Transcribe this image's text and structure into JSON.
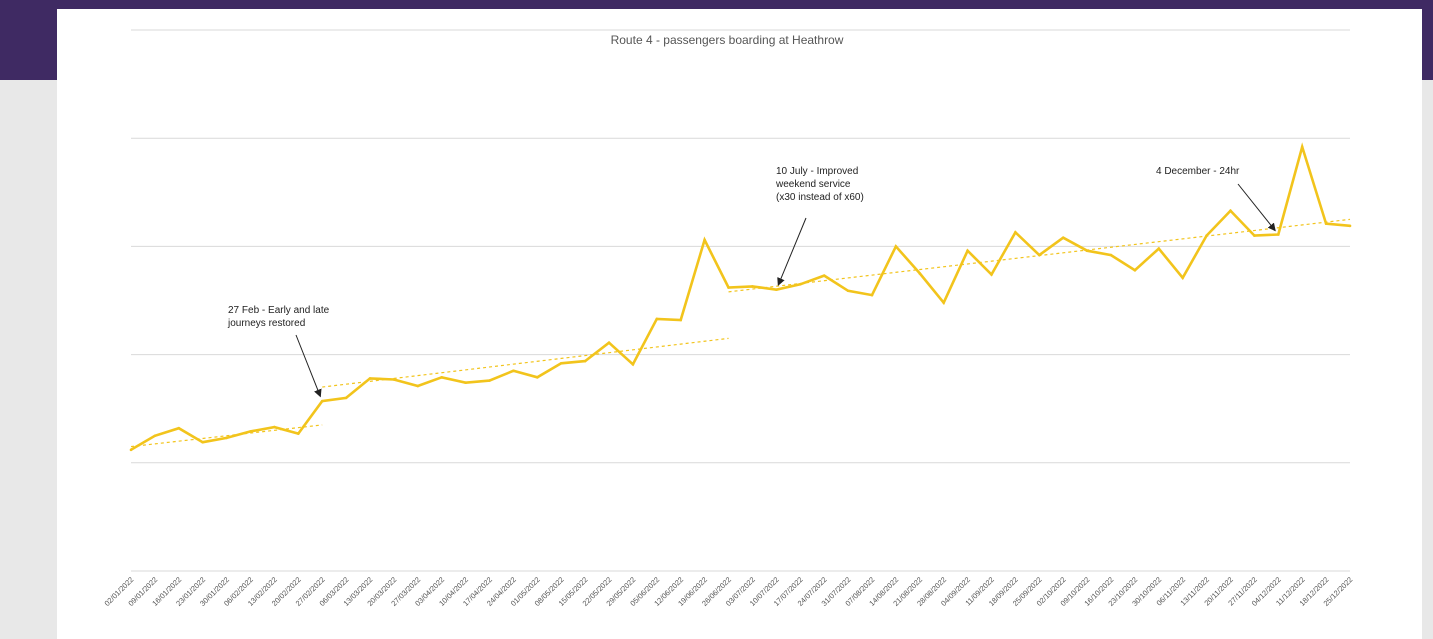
{
  "chart_data": {
    "type": "line",
    "title": "Route 4 - passengers boarding at Heathrow",
    "xlabel": "",
    "ylabel": "",
    "ylim": [
      0,
      5
    ],
    "grid": true,
    "y_ticks_labeled": false,
    "colors": {
      "series": "#f2c41c",
      "trend": "#f2c41c",
      "grid": "#d9d9d9",
      "arrow": "#222222"
    },
    "categories": [
      "02/01/2022",
      "09/01/2022",
      "16/01/2022",
      "23/01/2022",
      "30/01/2022",
      "06/02/2022",
      "13/02/2022",
      "20/02/2022",
      "27/02/2022",
      "06/03/2022",
      "13/03/2022",
      "20/03/2022",
      "27/03/2022",
      "03/04/2022",
      "10/04/2022",
      "17/04/2022",
      "24/04/2022",
      "01/05/2022",
      "08/05/2022",
      "15/05/2022",
      "22/05/2022",
      "29/05/2022",
      "05/06/2022",
      "12/06/2022",
      "19/06/2022",
      "26/06/2022",
      "03/07/2022",
      "10/07/2022",
      "17/07/2022",
      "24/07/2022",
      "31/07/2022",
      "07/08/2022",
      "14/08/2022",
      "21/08/2022",
      "28/08/2022",
      "04/09/2022",
      "11/09/2022",
      "18/09/2022",
      "25/09/2022",
      "02/10/2022",
      "09/10/2022",
      "16/10/2022",
      "23/10/2022",
      "30/10/2022",
      "06/11/2022",
      "13/11/2022",
      "20/11/2022",
      "27/11/2022",
      "04/12/2022",
      "11/12/2022",
      "18/12/2022",
      "25/12/2022"
    ],
    "series": [
      {
        "values": [
          1.12,
          1.25,
          1.32,
          1.19,
          1.23,
          1.29,
          1.33,
          1.27,
          1.57,
          1.6,
          1.78,
          1.77,
          1.71,
          1.79,
          1.74,
          1.76,
          1.85,
          1.79,
          1.92,
          1.94,
          2.11,
          1.91,
          2.33,
          2.32,
          3.06,
          2.62,
          2.63,
          2.6,
          2.65,
          2.73,
          2.59,
          2.55,
          3.0,
          2.75,
          2.48,
          2.96,
          2.74,
          3.13,
          2.92,
          3.08,
          2.96,
          2.92,
          2.78,
          2.98,
          2.71,
          3.1,
          3.33,
          3.1,
          3.11,
          3.92,
          3.21,
          3.19
        ]
      }
    ],
    "trendlines": [
      {
        "from": [
          0,
          1.15
        ],
        "to": [
          8,
          1.35
        ]
      },
      {
        "from": [
          8,
          1.7
        ],
        "to": [
          25,
          2.15
        ]
      },
      {
        "from": [
          25,
          2.58
        ],
        "to": [
          51,
          3.25
        ]
      }
    ],
    "annotations": [
      {
        "lines": [
          "27 Feb - Early and late",
          "journeys restored"
        ],
        "point_index": 8
      },
      {
        "lines": [
          "10 July - Improved",
          "weekend service",
          "(x30 instead of x60)"
        ],
        "point_index": 27
      },
      {
        "lines": [
          "4 December - 24hr"
        ],
        "point_index": 48
      }
    ]
  }
}
